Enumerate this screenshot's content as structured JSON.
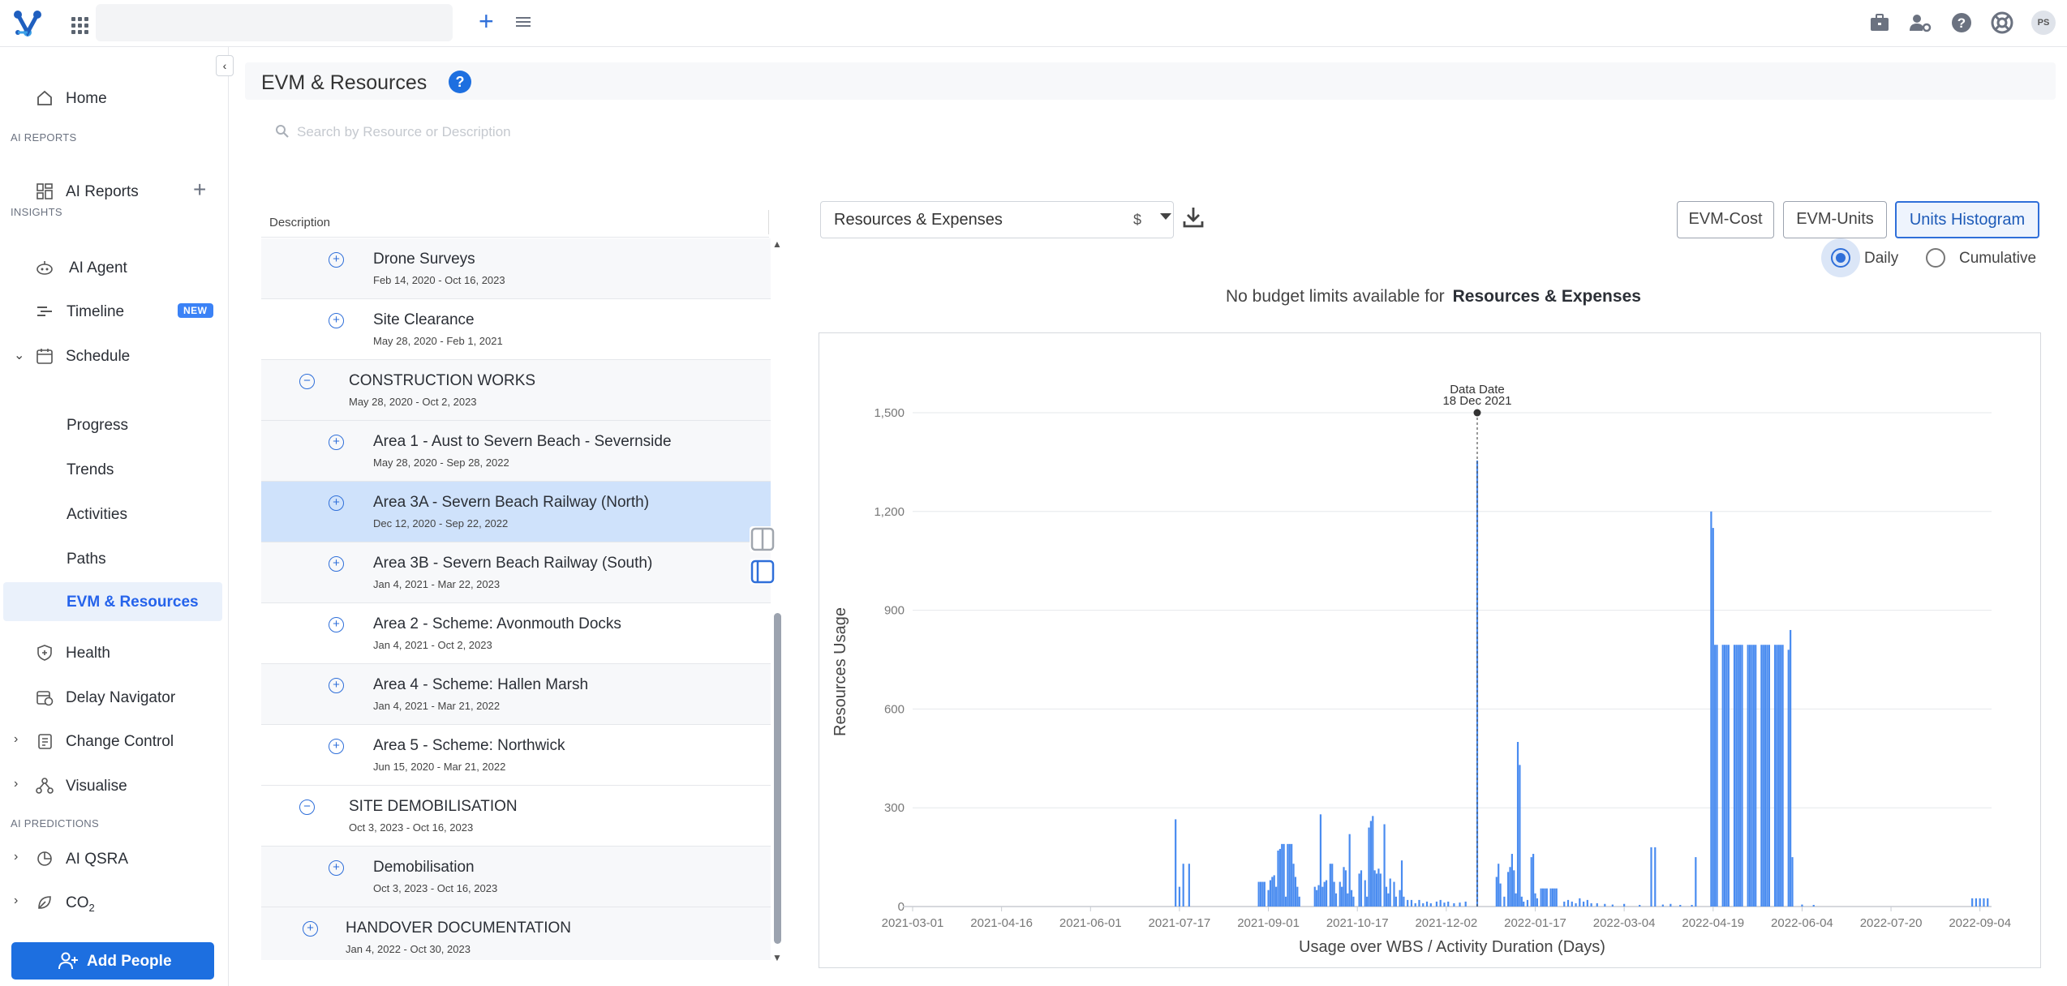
{
  "header": {
    "icons": [
      "logo-icon",
      "apps-grid-icon",
      "menu-icon",
      "add-icon",
      "briefcase-icon",
      "user-settings-icon",
      "help-icon",
      "support-icon"
    ],
    "avatar_initials": "PS"
  },
  "sidebar": {
    "home": "Home",
    "section_ai_reports": "AI REPORTS",
    "ai_reports": "AI Reports",
    "section_insights": "INSIGHTS",
    "ai_agent": "AI Agent",
    "timeline": "Timeline",
    "timeline_badge": "NEW",
    "schedule": "Schedule",
    "progress": "Progress",
    "trends": "Trends",
    "activities": "Activities",
    "paths": "Paths",
    "evm_resources": "EVM & Resources",
    "health": "Health",
    "delay_navigator": "Delay Navigator",
    "change_control": "Change Control",
    "visualise": "Visualise",
    "section_ai_predictions": "AI PREDICTIONS",
    "ai_qsra": "AI QSRA",
    "co2": "CO",
    "co2_sub": "2",
    "add_people": "Add People"
  },
  "page": {
    "title": "EVM & Resources",
    "search_placeholder": "Search by Resource or Description",
    "column_description": "Description"
  },
  "rows": [
    {
      "name": "Drone Surveys",
      "dates": "Feb 14, 2020 - Oct 16, 2023",
      "level": 2,
      "expand": "+",
      "state": "odd"
    },
    {
      "name": "Site Clearance",
      "dates": "May 28, 2020 - Feb 1, 2021",
      "level": 2,
      "expand": "+",
      "state": "even"
    },
    {
      "name": "CONSTRUCTION WORKS",
      "dates": "May 28, 2020 - Oct 2, 2023",
      "level": 1,
      "expand": "−",
      "state": "odd"
    },
    {
      "name": "Area 1 - Aust to Severn Beach - Severnside",
      "dates": "May 28, 2020 - Sep 28, 2022",
      "level": 2,
      "expand": "+",
      "state": "odd"
    },
    {
      "name": "Area 3A - Severn Beach Railway (North)",
      "dates": "Dec 12, 2020 - Sep 22, 2022",
      "level": 2,
      "expand": "+",
      "state": "sel"
    },
    {
      "name": "Area 3B - Severn Beach Railway (South)",
      "dates": "Jan 4, 2021 - Mar 22, 2023",
      "level": 2,
      "expand": "+",
      "state": "odd"
    },
    {
      "name": "Area 2 - Scheme: Avonmouth Docks",
      "dates": "Jan 4, 2021 - Oct 2, 2023",
      "level": 2,
      "expand": "+",
      "state": "even"
    },
    {
      "name": "Area 4 - Scheme: Hallen Marsh",
      "dates": "Jan 4, 2021 - Mar 21, 2022",
      "level": 2,
      "expand": "+",
      "state": "odd"
    },
    {
      "name": "Area 5 - Scheme: Northwick",
      "dates": "Jun 15, 2020 - Mar 21, 2022",
      "level": 2,
      "expand": "+",
      "state": "even"
    },
    {
      "name": "SITE DEMOBILISATION",
      "dates": "Oct 3, 2023 - Oct 16, 2023",
      "level": 1,
      "expand": "−",
      "state": "even"
    },
    {
      "name": "Demobilisation",
      "dates": "Oct 3, 2023 - Oct 16, 2023",
      "level": 2,
      "expand": "+",
      "state": "odd"
    },
    {
      "name": "HANDOVER DOCUMENTATION",
      "dates": "Jan 4, 2022 - Oct 30, 2023",
      "level": 0,
      "expand": "+",
      "state": "odd"
    }
  ],
  "controls": {
    "resource_select": "Resources & Expenses",
    "currency": "$",
    "view_buttons": [
      "EVM-Cost",
      "EVM-Units",
      "Units Histogram"
    ],
    "active_view": "Units Histogram",
    "radio_daily": "Daily",
    "radio_cumulative": "Cumulative",
    "radio_selected": "Daily"
  },
  "notice": {
    "text": "No budget limits available for",
    "bold": "Resources & Expenses"
  },
  "colors": {
    "accent": "#2f6fd9",
    "bar": "#4a8cf0",
    "selected_row": "#cfe2fb"
  },
  "chart_data": {
    "type": "bar",
    "ylabel": "Resources Usage",
    "xlabel": "Usage over WBS / Activity Duration (Days)",
    "ylim": [
      0,
      1500
    ],
    "yticks": [
      0,
      300,
      600,
      900,
      1200,
      1500
    ],
    "ytick_labels": [
      "0",
      "300",
      "600",
      "900",
      "1,200",
      "1,500"
    ],
    "xlim": [
      "2021-03-01",
      "2022-09-10"
    ],
    "xticks": [
      "2021-03-01",
      "2021-04-16",
      "2021-06-01",
      "2021-07-17",
      "2021-09-01",
      "2021-10-17",
      "2021-12-02",
      "2022-01-17",
      "2022-03-04",
      "2022-04-19",
      "2022-06-04",
      "2022-07-20",
      "2022-09-04"
    ],
    "grid": true,
    "data_date_label": "Data Date",
    "data_date_text": "18 Dec 2021",
    "data_date": "2021-12-18",
    "bars": [
      [
        "2021-07-15",
        265
      ],
      [
        "2021-07-17",
        60
      ],
      [
        "2021-07-19",
        130
      ],
      [
        "2021-07-22",
        130
      ],
      [
        "2021-08-27",
        75
      ],
      [
        "2021-08-28",
        75
      ],
      [
        "2021-08-29",
        75
      ],
      [
        "2021-08-30",
        75
      ],
      [
        "2021-09-01",
        50
      ],
      [
        "2021-09-02",
        80
      ],
      [
        "2021-09-03",
        90
      ],
      [
        "2021-09-04",
        95
      ],
      [
        "2021-09-05",
        60
      ],
      [
        "2021-09-06",
        170
      ],
      [
        "2021-09-07",
        175
      ],
      [
        "2021-09-08",
        190
      ],
      [
        "2021-09-09",
        190
      ],
      [
        "2021-09-10",
        30
      ],
      [
        "2021-09-11",
        190
      ],
      [
        "2021-09-12",
        190
      ],
      [
        "2021-09-13",
        190
      ],
      [
        "2021-09-14",
        130
      ],
      [
        "2021-09-15",
        90
      ],
      [
        "2021-09-16",
        60
      ],
      [
        "2021-09-17",
        30
      ],
      [
        "2021-09-25",
        60
      ],
      [
        "2021-09-26",
        50
      ],
      [
        "2021-09-27",
        65
      ],
      [
        "2021-09-28",
        280
      ],
      [
        "2021-09-29",
        60
      ],
      [
        "2021-09-30",
        75
      ],
      [
        "2021-10-01",
        80
      ],
      [
        "2021-10-03",
        130
      ],
      [
        "2021-10-04",
        130
      ],
      [
        "2021-10-05",
        75
      ],
      [
        "2021-10-06",
        40
      ],
      [
        "2021-10-08",
        75
      ],
      [
        "2021-10-09",
        60
      ],
      [
        "2021-10-10",
        120
      ],
      [
        "2021-10-11",
        110
      ],
      [
        "2021-10-12",
        40
      ],
      [
        "2021-10-13",
        220
      ],
      [
        "2021-10-14",
        50
      ],
      [
        "2021-10-15",
        30
      ],
      [
        "2021-10-18",
        100
      ],
      [
        "2021-10-19",
        110
      ],
      [
        "2021-10-21",
        80
      ],
      [
        "2021-10-22",
        30
      ],
      [
        "2021-10-23",
        240
      ],
      [
        "2021-10-24",
        260
      ],
      [
        "2021-10-25",
        275
      ],
      [
        "2021-10-26",
        110
      ],
      [
        "2021-10-27",
        100
      ],
      [
        "2021-10-28",
        115
      ],
      [
        "2021-10-29",
        100
      ],
      [
        "2021-10-31",
        250
      ],
      [
        "2021-11-01",
        60
      ],
      [
        "2021-11-02",
        40
      ],
      [
        "2021-11-03",
        85
      ],
      [
        "2021-11-05",
        75
      ],
      [
        "2021-11-06",
        30
      ],
      [
        "2021-11-08",
        50
      ],
      [
        "2021-11-09",
        140
      ],
      [
        "2021-11-10",
        30
      ],
      [
        "2021-11-12",
        20
      ],
      [
        "2021-11-14",
        20
      ],
      [
        "2021-11-16",
        10
      ],
      [
        "2021-11-18",
        20
      ],
      [
        "2021-11-20",
        10
      ],
      [
        "2021-11-22",
        15
      ],
      [
        "2021-11-24",
        10
      ],
      [
        "2021-11-27",
        15
      ],
      [
        "2021-11-29",
        20
      ],
      [
        "2021-12-01",
        12
      ],
      [
        "2021-12-03",
        15
      ],
      [
        "2021-12-06",
        10
      ],
      [
        "2021-12-09",
        12
      ],
      [
        "2021-12-12",
        15
      ],
      [
        "2021-12-18",
        1355
      ],
      [
        "2021-12-28",
        90
      ],
      [
        "2021-12-29",
        130
      ],
      [
        "2021-12-30",
        70
      ],
      [
        "2022-01-01",
        30
      ],
      [
        "2022-01-03",
        105
      ],
      [
        "2022-01-04",
        120
      ],
      [
        "2022-01-05",
        160
      ],
      [
        "2022-01-06",
        110
      ],
      [
        "2022-01-07",
        40
      ],
      [
        "2022-01-08",
        500
      ],
      [
        "2022-01-09",
        430
      ],
      [
        "2022-01-10",
        30
      ],
      [
        "2022-01-11",
        15
      ],
      [
        "2022-01-13",
        20
      ],
      [
        "2022-01-15",
        150
      ],
      [
        "2022-01-16",
        160
      ],
      [
        "2022-01-17",
        40
      ],
      [
        "2022-01-18",
        25
      ],
      [
        "2022-01-20",
        55
      ],
      [
        "2022-01-21",
        55
      ],
      [
        "2022-01-22",
        55
      ],
      [
        "2022-01-23",
        55
      ],
      [
        "2022-01-25",
        55
      ],
      [
        "2022-01-26",
        55
      ],
      [
        "2022-01-27",
        55
      ],
      [
        "2022-01-28",
        55
      ],
      [
        "2022-02-01",
        15
      ],
      [
        "2022-02-03",
        20
      ],
      [
        "2022-02-05",
        15
      ],
      [
        "2022-02-07",
        10
      ],
      [
        "2022-02-09",
        25
      ],
      [
        "2022-02-11",
        15
      ],
      [
        "2022-02-13",
        20
      ],
      [
        "2022-02-15",
        10
      ],
      [
        "2022-02-18",
        10
      ],
      [
        "2022-02-22",
        8
      ],
      [
        "2022-02-26",
        6
      ],
      [
        "2022-03-04",
        8
      ],
      [
        "2022-03-12",
        5
      ],
      [
        "2022-03-18",
        180
      ],
      [
        "2022-03-20",
        180
      ],
      [
        "2022-03-24",
        6
      ],
      [
        "2022-03-28",
        8
      ],
      [
        "2022-04-02",
        5
      ],
      [
        "2022-04-08",
        5
      ],
      [
        "2022-04-10",
        150
      ],
      [
        "2022-04-18",
        1200
      ],
      [
        "2022-04-19",
        1150
      ],
      [
        "2022-04-20",
        795
      ],
      [
        "2022-04-21",
        795
      ],
      [
        "2022-04-24",
        795
      ],
      [
        "2022-04-25",
        795
      ],
      [
        "2022-04-26",
        795
      ],
      [
        "2022-04-27",
        795
      ],
      [
        "2022-04-30",
        795
      ],
      [
        "2022-05-01",
        795
      ],
      [
        "2022-05-02",
        795
      ],
      [
        "2022-05-03",
        795
      ],
      [
        "2022-05-04",
        795
      ],
      [
        "2022-05-07",
        795
      ],
      [
        "2022-05-08",
        795
      ],
      [
        "2022-05-09",
        795
      ],
      [
        "2022-05-10",
        795
      ],
      [
        "2022-05-11",
        795
      ],
      [
        "2022-05-14",
        795
      ],
      [
        "2022-05-15",
        795
      ],
      [
        "2022-05-16",
        795
      ],
      [
        "2022-05-17",
        795
      ],
      [
        "2022-05-18",
        795
      ],
      [
        "2022-05-21",
        795
      ],
      [
        "2022-05-22",
        795
      ],
      [
        "2022-05-23",
        795
      ],
      [
        "2022-05-24",
        795
      ],
      [
        "2022-05-25",
        795
      ],
      [
        "2022-05-28",
        780
      ],
      [
        "2022-05-29",
        840
      ],
      [
        "2022-05-30",
        150
      ],
      [
        "2022-06-04",
        6
      ],
      [
        "2022-06-10",
        5
      ],
      [
        "2022-08-31",
        25
      ],
      [
        "2022-09-02",
        25
      ],
      [
        "2022-09-04",
        25
      ],
      [
        "2022-09-06",
        25
      ],
      [
        "2022-09-08",
        25
      ]
    ]
  }
}
